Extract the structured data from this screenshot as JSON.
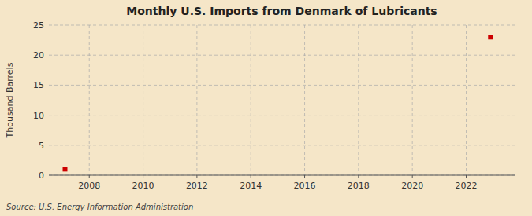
{
  "chart_data": {
    "type": "scatter",
    "title": "Monthly U.S. Imports from Denmark of Lubricants",
    "y_label": "Thousand Barrels",
    "source": "Source: U.S. Energy Information Administration",
    "x": [
      2007.1,
      2022.9
    ],
    "values": [
      1,
      23
    ],
    "color": "#cc0000",
    "marker": "square",
    "xlim": [
      2006.5,
      2023.8
    ],
    "ylim": [
      0,
      25
    ],
    "xticks": [
      2008,
      2010,
      2012,
      2014,
      2016,
      2018,
      2020,
      2022
    ],
    "yticks": [
      0,
      5,
      10,
      15,
      20,
      25
    ],
    "grid": true
  }
}
